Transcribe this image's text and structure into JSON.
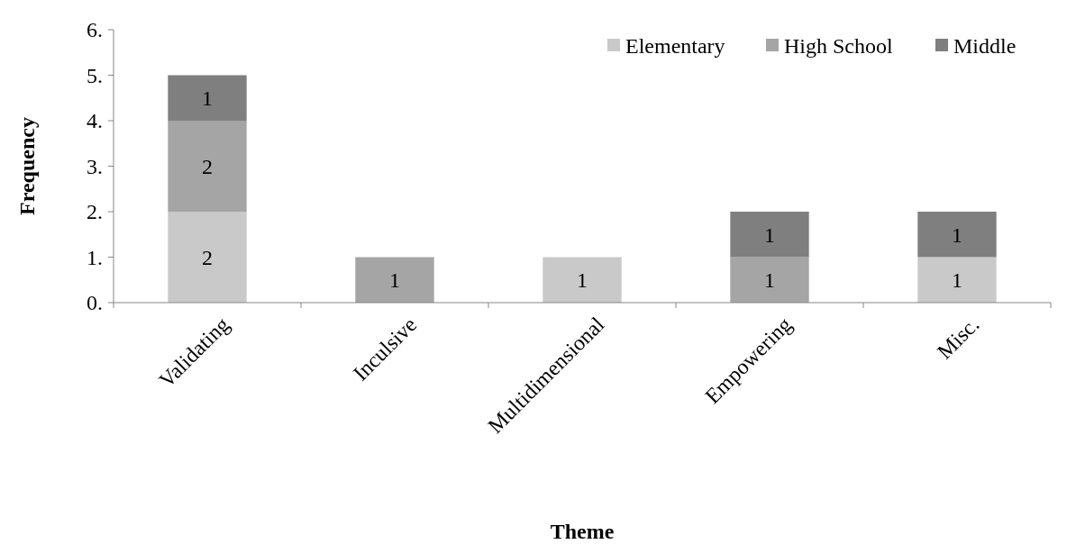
{
  "chart_data": {
    "type": "bar",
    "stacked": true,
    "xlabel": "Theme",
    "ylabel": "Frequency",
    "categories": [
      "Validating",
      "Inculsive",
      "Multidimensional",
      "Empowering",
      "Misc."
    ],
    "series": [
      {
        "name": "Elementary",
        "color": "#c9c9c9",
        "values": [
          2,
          null,
          1,
          null,
          1
        ]
      },
      {
        "name": "High School",
        "color": "#a5a5a5",
        "values": [
          2,
          1,
          null,
          1,
          null
        ]
      },
      {
        "name": "Middle",
        "color": "#7f7f7f",
        "values": [
          1,
          null,
          null,
          1,
          1
        ]
      }
    ],
    "ylim": [
      0,
      6
    ],
    "yticks": [
      {
        "value": 0,
        "label": "0."
      },
      {
        "value": 1,
        "label": "1."
      },
      {
        "value": 2,
        "label": "2."
      },
      {
        "value": 3,
        "label": "3."
      },
      {
        "value": 4,
        "label": "4."
      },
      {
        "value": 5,
        "label": "5."
      },
      {
        "value": 6,
        "label": "6."
      }
    ],
    "data_labels": true,
    "legend": "top right"
  }
}
